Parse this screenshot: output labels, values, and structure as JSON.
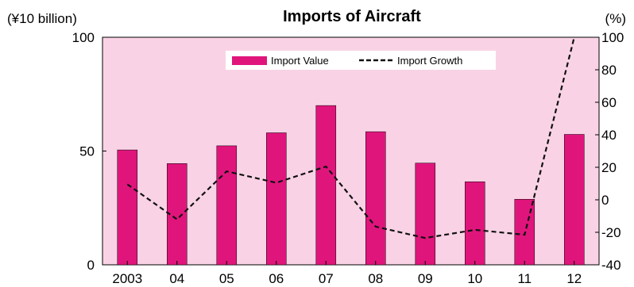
{
  "chart_data": {
    "type": "bar",
    "title": "Imports of Aircraft",
    "y_left_unit": "(¥10 billion)",
    "y_right_unit": "(%)",
    "categories": [
      "2003",
      "04",
      "05",
      "06",
      "07",
      "08",
      "09",
      "10",
      "11",
      "12"
    ],
    "series": [
      {
        "name": "Import Value",
        "type": "bar",
        "axis": "left",
        "color": "#e0157c",
        "values": [
          50.5,
          44.5,
          52.3,
          58.0,
          70.0,
          58.5,
          44.7,
          36.5,
          28.8,
          57.3
        ]
      },
      {
        "name": "Import Growth",
        "type": "line",
        "axis": "right",
        "style": "dashed",
        "color": "#111111",
        "values": [
          9.5,
          -12.0,
          17.5,
          10.5,
          20.5,
          -16.5,
          -23.5,
          -18.5,
          -21.5,
          100.0
        ]
      }
    ],
    "y_left": {
      "range": [
        0,
        100
      ],
      "ticks": [
        "0",
        "50",
        "100"
      ]
    },
    "y_right": {
      "range": [
        -40,
        100
      ],
      "ticks": [
        "-40",
        "-20",
        "0",
        "20",
        "40",
        "60",
        "80",
        "100"
      ]
    },
    "plot_background": "#f9d3e5",
    "grid": false,
    "legend_position": "top-center"
  }
}
